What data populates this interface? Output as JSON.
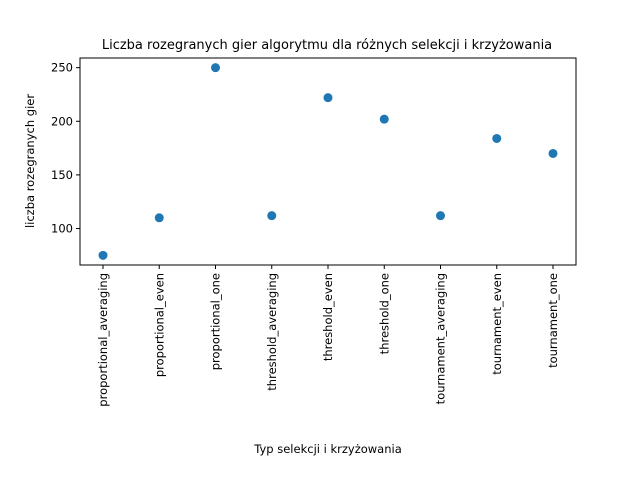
{
  "chart_data": {
    "type": "scatter",
    "title": "Liczba rozegranych gier algorytmu dla różnych selekcji i krzyżowania",
    "xlabel": "Typ selekcji i krzyżowania",
    "ylabel": "liczba rozegranych gier",
    "categories": [
      "proportional_averaging",
      "proportional_even",
      "proportional_one",
      "threshold_averaging",
      "threshold_even",
      "threshold_one",
      "tournament_averaging",
      "tournament_even",
      "tournament_one"
    ],
    "values": [
      75,
      110,
      250,
      112,
      222,
      202,
      112,
      184,
      170
    ],
    "yticks": [
      100,
      150,
      200,
      250
    ],
    "ylim": [
      66,
      259
    ],
    "grid": false,
    "legend": "none",
    "marker_color": "#1f77b4"
  }
}
